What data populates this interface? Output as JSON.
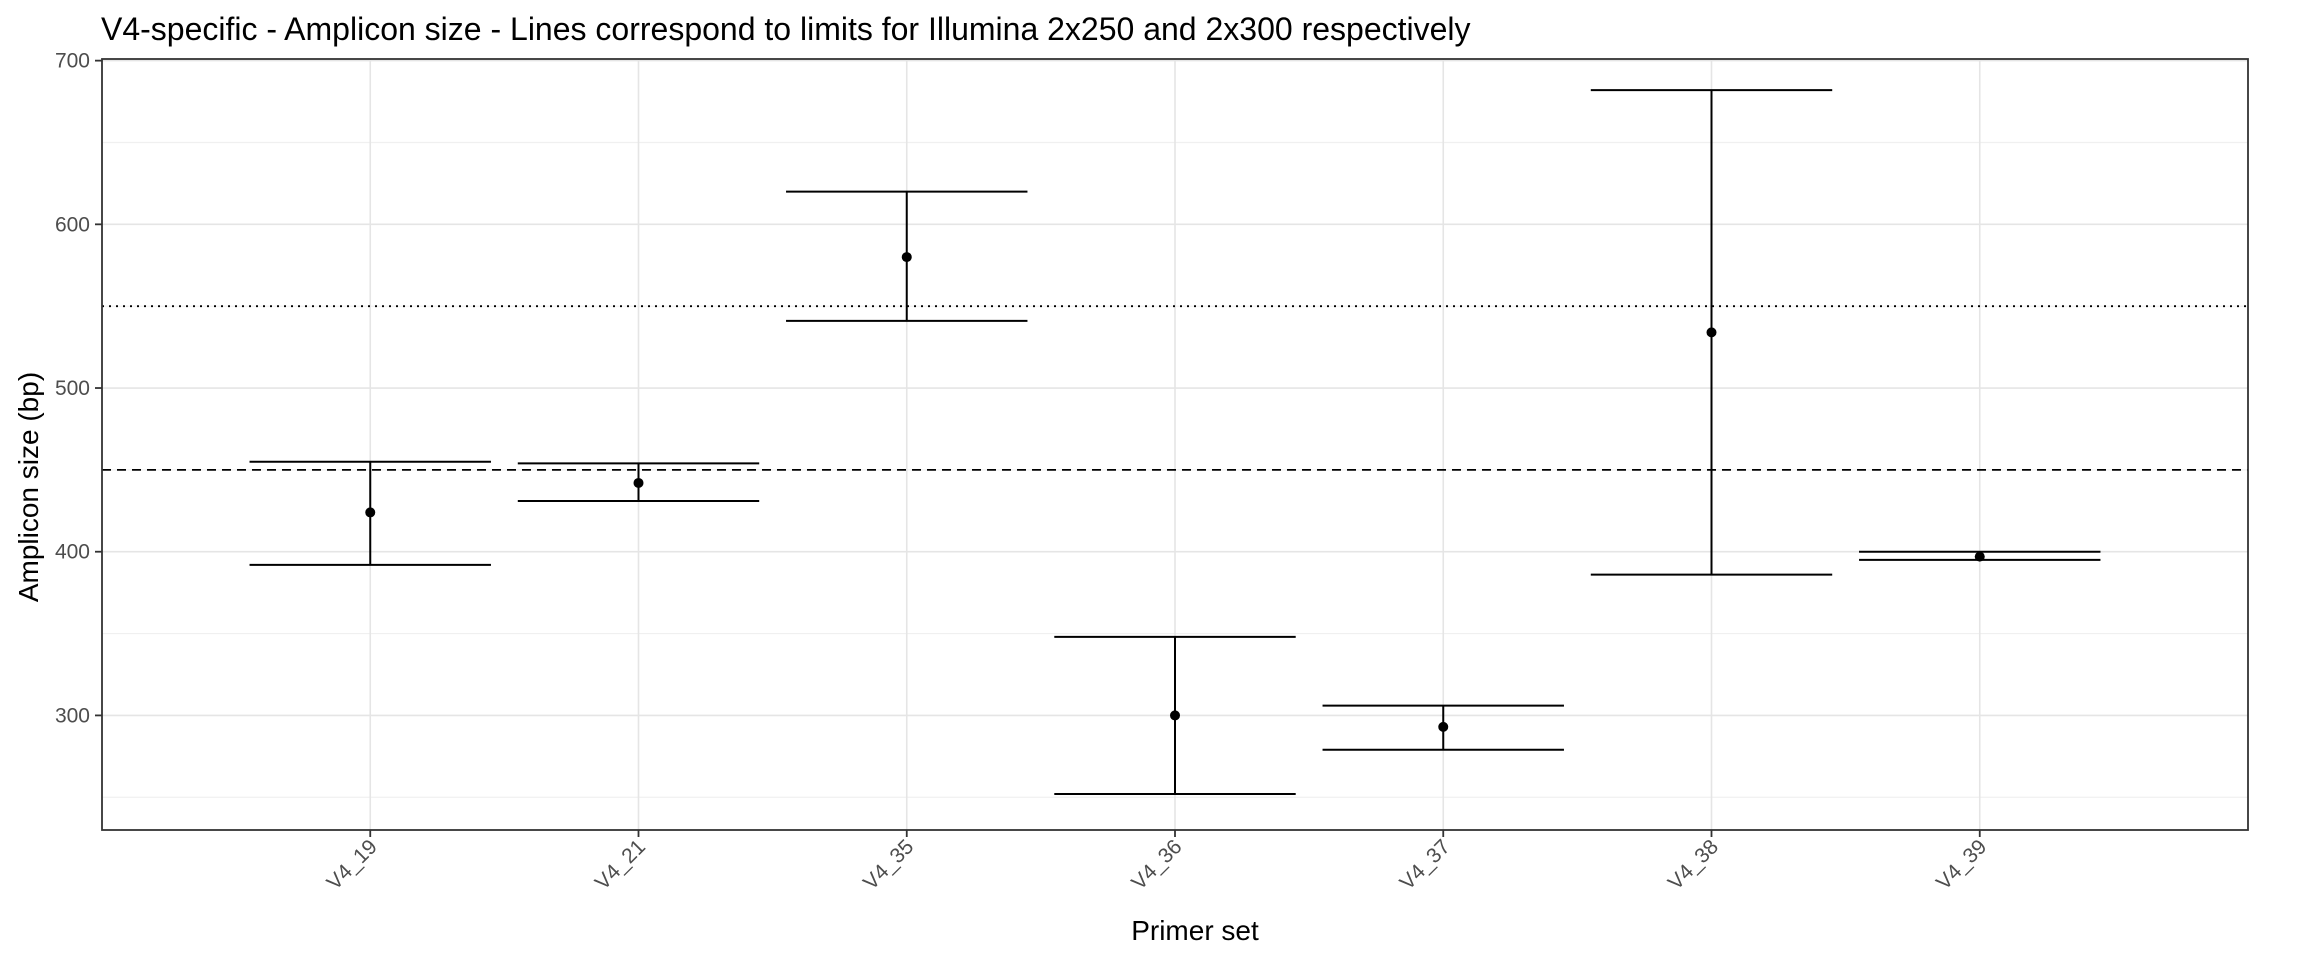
{
  "chart_data": {
    "type": "errorbar",
    "title": "V4-specific - Amplicon size - Lines correspond to limits for Illumina 2x250 and 2x300 respectively",
    "xlabel": "Primer set",
    "ylabel": "Amplicon size (bp)",
    "categories": [
      "V4_19",
      "V4_21",
      "V4_35",
      "V4_36",
      "V4_37",
      "V4_38",
      "V4_39"
    ],
    "points": [
      {
        "x": "V4_19",
        "mean": 424,
        "lower": 392,
        "upper": 455
      },
      {
        "x": "V4_21",
        "mean": 442,
        "lower": 431,
        "upper": 454
      },
      {
        "x": "V4_35",
        "mean": 580,
        "lower": 541,
        "upper": 620
      },
      {
        "x": "V4_36",
        "mean": 300,
        "lower": 252,
        "upper": 348
      },
      {
        "x": "V4_37",
        "mean": 293,
        "lower": 279,
        "upper": 306
      },
      {
        "x": "V4_38",
        "mean": 534,
        "lower": 386,
        "upper": 682
      },
      {
        "x": "V4_39",
        "mean": 397,
        "lower": 395,
        "upper": 400
      }
    ],
    "reference_lines": [
      {
        "y": 450,
        "style": "dashed"
      },
      {
        "y": 550,
        "style": "dotted"
      }
    ],
    "ylim": [
      230,
      701
    ],
    "yticks": [
      300,
      400,
      500,
      600,
      700
    ],
    "grid": true,
    "legend": "none"
  }
}
